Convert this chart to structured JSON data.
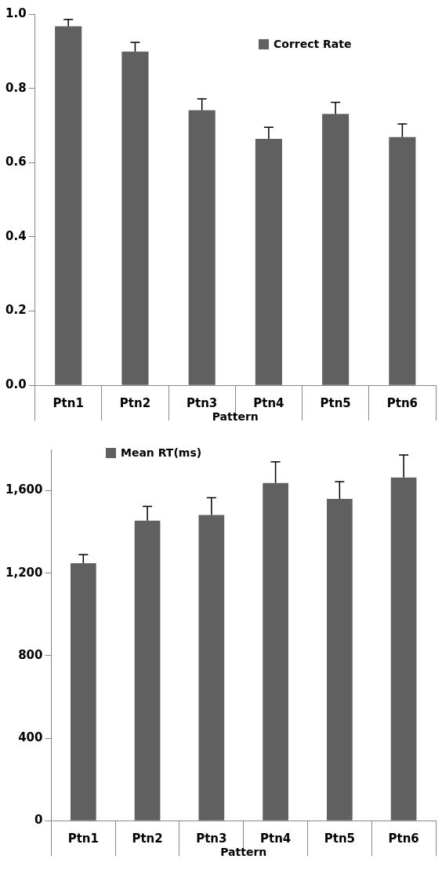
{
  "chart_data": [
    {
      "type": "bar",
      "xlabel": "Pattern",
      "categories": [
        "Ptn1",
        "Ptn2",
        "Ptn3",
        "Ptn4",
        "Ptn5",
        "Ptn6"
      ],
      "series": [
        {
          "name": "Correct Rate",
          "color": "#606060",
          "values": [
            0.967,
            0.899,
            0.741,
            0.664,
            0.731,
            0.669
          ],
          "errors": [
            [
              0.967,
              0.986
            ],
            [
              0.899,
              0.924
            ],
            [
              0.741,
              0.772
            ],
            [
              0.664,
              0.695
            ],
            [
              0.731,
              0.762
            ],
            [
              0.669,
              0.704
            ]
          ]
        }
      ],
      "ylim": [
        0,
        1
      ],
      "yticks": [
        {
          "value": 0,
          "label": "0.0"
        },
        {
          "value": 0.2,
          "label": "0.2"
        },
        {
          "value": 0.4,
          "label": "0.4"
        },
        {
          "value": 0.6,
          "label": "0.6"
        },
        {
          "value": 0.8,
          "label": "0.8"
        },
        {
          "value": 1,
          "label": "1.0"
        }
      ],
      "grid": false,
      "legend": "top right"
    },
    {
      "type": "bar",
      "xlabel": "Pattern",
      "categories": [
        "Ptn1",
        "Ptn2",
        "Ptn3",
        "Ptn4",
        "Ptn5",
        "Ptn6"
      ],
      "series": [
        {
          "name": "Mean RT(ms)",
          "color": "#606060",
          "values": [
            1248,
            1455,
            1482,
            1637,
            1560,
            1664
          ],
          "errors": [
            [
              1248,
              1290
            ],
            [
              1455,
              1524
            ],
            [
              1482,
              1566
            ],
            [
              1637,
              1740
            ],
            [
              1560,
              1644
            ],
            [
              1664,
              1773
            ]
          ]
        }
      ],
      "ylim": [
        0,
        1800
      ],
      "yticks": [
        0,
        400,
        800,
        {
          "value": 1200,
          "label": "1,200"
        },
        {
          "value": 1600,
          "label": "1,600"
        }
      ],
      "grid": false,
      "legend": "top left"
    }
  ]
}
